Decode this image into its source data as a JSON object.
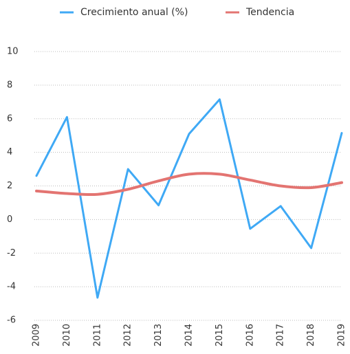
{
  "chart_data": {
    "type": "line",
    "categories": [
      "2009",
      "2010",
      "2011",
      "2012",
      "2013",
      "2014",
      "2015",
      "2016",
      "2017",
      "2018",
      "2019"
    ],
    "series": [
      {
        "name": "Crecimiento anual (%)",
        "color": "#3fa9f5",
        "values": [
          2.6,
          6.1,
          -4.65,
          3.0,
          0.85,
          5.1,
          7.15,
          -0.55,
          0.8,
          -1.7,
          5.15
        ]
      },
      {
        "name": "Tendencia",
        "color": "#e37471",
        "smooth": true,
        "values": [
          1.7,
          1.55,
          1.5,
          1.8,
          2.3,
          2.7,
          2.7,
          2.35,
          2.0,
          1.9,
          2.2
        ]
      }
    ],
    "ylim": [
      -6,
      10
    ],
    "yticks": [
      -6,
      -4,
      -2,
      0,
      2,
      4,
      6,
      8,
      10
    ],
    "grid": true,
    "legend": "top"
  }
}
